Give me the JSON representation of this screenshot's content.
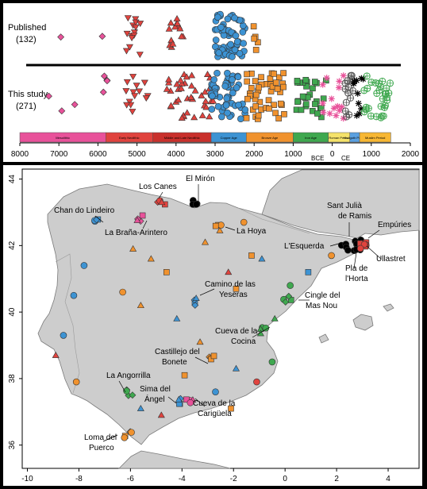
{
  "timeline": {
    "rows": [
      {
        "label": "Published",
        "count": "(132)"
      },
      {
        "label": "This study",
        "count": "(271)"
      }
    ],
    "periods": [
      {
        "name": "Mesolithic",
        "start": -8000,
        "end": -5800,
        "color": "#e8529a"
      },
      {
        "name": "Early Neolithic",
        "start": -5800,
        "end": -4600,
        "color": "#e0433e"
      },
      {
        "name": "Middle and Late Neolithic",
        "start": -4600,
        "end": -3100,
        "color": "#c9302c"
      },
      {
        "name": "Copper Age",
        "start": -3100,
        "end": -2200,
        "color": "#3d93d3"
      },
      {
        "name": "Bronze Age",
        "start": -2200,
        "end": -1000,
        "color": "#f0922e"
      },
      {
        "name": "Iron Age",
        "start": -1000,
        "end": -100,
        "color": "#3fa84f"
      },
      {
        "name": "Roman Period",
        "start": -100,
        "end": 450,
        "color": "#f5e26a"
      },
      {
        "name": "Vis-igoth Period",
        "start": 450,
        "end": 700,
        "color": "#5aa0e0"
      },
      {
        "name": "Muslim Period",
        "start": 700,
        "end": 1500,
        "color": "#f7b733"
      }
    ],
    "axis_ticks": [
      "8000",
      "7000",
      "6000",
      "5000",
      "4000",
      "3000",
      "2000",
      "1000",
      "0",
      "1000",
      "2000"
    ],
    "axis_ticks_values": [
      -8000,
      -7000,
      -6000,
      -5000,
      -4000,
      -3000,
      -2000,
      -1000,
      0,
      1000,
      2000
    ],
    "era_labels": {
      "bce": "BCE",
      "ce": "CE"
    }
  },
  "map": {
    "x_ticks": [
      "-10",
      "-8",
      "-6",
      "-4",
      "-2",
      "0",
      "2",
      "4"
    ],
    "x_tick_values": [
      -10,
      -8,
      -6,
      -4,
      -2,
      0,
      2,
      4
    ],
    "y_ticks": [
      "36",
      "38",
      "40",
      "42",
      "44"
    ],
    "y_tick_values": [
      36,
      38,
      40,
      42,
      44
    ],
    "xlim": [
      -10.2,
      5.2
    ],
    "ylim": [
      35.3,
      44.3
    ],
    "sites": [
      {
        "name": "Los Canes",
        "lon": -4.8,
        "lat": 43.3,
        "color": "#e0433e"
      },
      {
        "name": "El Mirón",
        "lon": -3.5,
        "lat": 43.25,
        "color": "#000000"
      },
      {
        "name": "Chan do Lindeiro",
        "lon": -7.3,
        "lat": 42.7,
        "color": "#3d93d3"
      },
      {
        "name": "La Braña-Arintero",
        "lon": -5.6,
        "lat": 42.85,
        "color": "#e8529a"
      },
      {
        "name": "La Hoya",
        "lon": -2.6,
        "lat": 42.55,
        "color": "#f0922e"
      },
      {
        "name": "Sant Julià de Ramis",
        "lon": 2.8,
        "lat": 42.05,
        "color": "#000000"
      },
      {
        "name": "Empúries",
        "lon": 3.1,
        "lat": 42.1,
        "color": "#e0433e"
      },
      {
        "name": "L'Esquerda",
        "lon": 2.3,
        "lat": 41.95,
        "color": "#000000"
      },
      {
        "name": "Pla de l'Horta",
        "lon": 2.8,
        "lat": 41.95,
        "color": "#000000"
      },
      {
        "name": "Ullastret",
        "lon": 3.0,
        "lat": 42.0,
        "color": "#e0433e"
      },
      {
        "name": "Camino de las Yeseras",
        "lon": -3.6,
        "lat": 40.3,
        "color": "#3d93d3"
      },
      {
        "name": "Cingle del Mas Nou",
        "lon": 0.1,
        "lat": 40.4,
        "color": "#3fa84f"
      },
      {
        "name": "Cueva de la Cocina",
        "lon": -0.8,
        "lat": 39.45,
        "color": "#3fa84f"
      },
      {
        "name": "Castillejo del Bonete",
        "lon": -2.9,
        "lat": 38.7,
        "color": "#f0922e"
      },
      {
        "name": "La Angorrilla",
        "lon": -6.0,
        "lat": 37.55,
        "color": "#3fa84f"
      },
      {
        "name": "Sima del Ángel",
        "lon": -4.2,
        "lat": 37.3,
        "color": "#3d93d3"
      },
      {
        "name": "Cueva de la Carigüela",
        "lon": -3.7,
        "lat": 37.35,
        "color": "#e8529a"
      },
      {
        "name": "Loma del Puerco",
        "lon": -6.1,
        "lat": 36.3,
        "color": "#f0922e"
      }
    ],
    "labels": [
      {
        "key": "los_canes",
        "text": "Los Canes"
      },
      {
        "key": "el_miron",
        "text": "El Mirón"
      },
      {
        "key": "chan",
        "text": "Chan do Lindeiro"
      },
      {
        "key": "brana",
        "text": "La Braña-Arintero"
      },
      {
        "key": "la_hoya",
        "text": "La Hoya"
      },
      {
        "key": "sant_julia_1",
        "text": "Sant Julià"
      },
      {
        "key": "sant_julia_2",
        "text": "de Ramis"
      },
      {
        "key": "empuries",
        "text": "Empúries"
      },
      {
        "key": "esquerda",
        "text": "L'Esquerda"
      },
      {
        "key": "pla_1",
        "text": "Pla de"
      },
      {
        "key": "pla_2",
        "text": "l'Horta"
      },
      {
        "key": "ullastret",
        "text": "Ullastret"
      },
      {
        "key": "camino_1",
        "text": "Camino de las"
      },
      {
        "key": "camino_2",
        "text": "Yeseras"
      },
      {
        "key": "cingle_1",
        "text": "Cingle del"
      },
      {
        "key": "cingle_2",
        "text": "Mas Nou"
      },
      {
        "key": "cocina_1",
        "text": "Cueva de la"
      },
      {
        "key": "cocina_2",
        "text": "Cocina"
      },
      {
        "key": "castillejo_1",
        "text": "Castillejo del"
      },
      {
        "key": "castillejo_2",
        "text": "Bonete"
      },
      {
        "key": "angorrilla",
        "text": "La Angorrilla"
      },
      {
        "key": "sima_1",
        "text": "Sima del"
      },
      {
        "key": "sima_2",
        "text": "Ángel"
      },
      {
        "key": "cariguela_1",
        "text": "Cueva de la"
      },
      {
        "key": "cariguela_2",
        "text": "Carigüela"
      },
      {
        "key": "loma_1",
        "text": "Loma del"
      },
      {
        "key": "loma_2",
        "text": "Puerco"
      }
    ],
    "colors": {
      "sea": "#ffffff",
      "land": "#cdcdcd",
      "coast": "#7a7a7a"
    }
  }
}
